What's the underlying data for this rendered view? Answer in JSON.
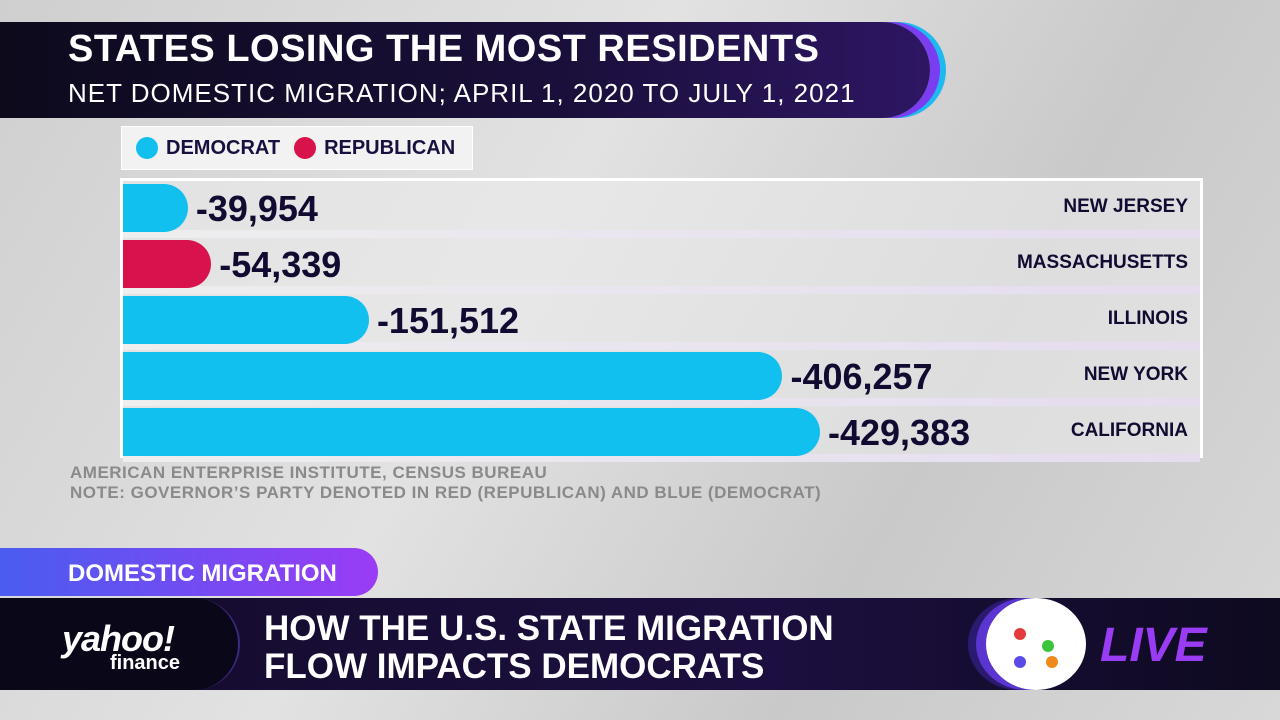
{
  "chart_data": {
    "type": "bar",
    "orientation": "horizontal",
    "title": "STATES LOSING THE MOST RESIDENTS",
    "subtitle": "NET DOMESTIC MIGRATION; APRIL 1, 2020 TO JULY 1, 2021",
    "legend": [
      {
        "label": "DEMOCRAT",
        "color": "#12c0ef"
      },
      {
        "label": "REPUBLICAN",
        "color": "#d8124a"
      }
    ],
    "categories": [
      "NEW JERSEY",
      "MASSACHUSETTS",
      "ILLINOIS",
      "NEW YORK",
      "CALIFORNIA"
    ],
    "values": [
      -39954,
      -54339,
      -151512,
      -406257,
      -429383
    ],
    "labels": [
      "-39,954",
      "-54,339",
      "-151,512",
      "-406,257",
      "-429,383"
    ],
    "party": [
      "DEMOCRAT",
      "REPUBLICAN",
      "DEMOCRAT",
      "DEMOCRAT",
      "DEMOCRAT"
    ],
    "source": "AMERICAN ENTERPRISE INSTITUTE, CENSUS BUREAU",
    "note": "NOTE: GOVERNOR’S PARTY DENOTED IN RED (REPUBLICAN) AND BLUE (DEMOCRAT)"
  },
  "broadcast": {
    "tag": "DOMESTIC MIGRATION",
    "logo_top": "yahoo!",
    "logo_bottom": "finance",
    "headline_1": "HOW THE U.S. STATE MIGRATION",
    "headline_2": "FLOW IMPACTS DEMOCRATS",
    "live": "LIVE"
  }
}
